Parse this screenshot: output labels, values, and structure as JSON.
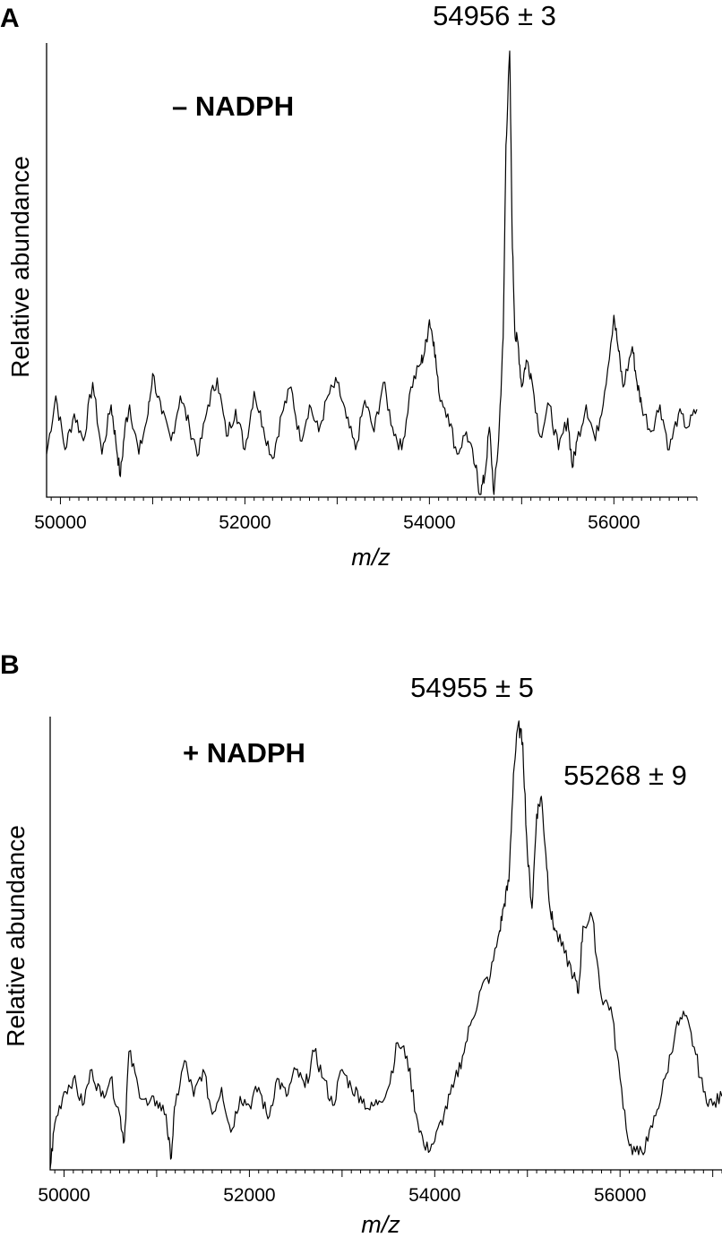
{
  "chart_data": [
    {
      "type": "line",
      "panel": "A",
      "annotation": "– NADPH",
      "peak_labels": [
        {
          "text": "54956 ± 3",
          "x": 54956
        }
      ],
      "ylabel": "Relative abundance",
      "xlabel": "m/z",
      "xlim": [
        49850,
        56900
      ],
      "ylim": [
        0,
        1
      ],
      "x_ticks": [
        50000,
        52000,
        54000,
        56000
      ],
      "x_tick_labels": [
        "50000",
        "52000",
        "54000",
        "56000"
      ],
      "series": [
        {
          "x": [
            49850,
            49950,
            50050,
            50150,
            50250,
            50350,
            50450,
            50550,
            50600,
            50650,
            50700,
            50750,
            50850,
            50950,
            51000,
            51100,
            51200,
            51300,
            51400,
            51500,
            51600,
            51700,
            51800,
            51900,
            52000,
            52100,
            52200,
            52300,
            52400,
            52500,
            52600,
            52700,
            52800,
            52900,
            53000,
            53100,
            53200,
            53300,
            53400,
            53500,
            53600,
            53700,
            53800,
            53900,
            53950,
            54000,
            54050,
            54100,
            54200,
            54300,
            54400,
            54500,
            54550,
            54600,
            54650,
            54700,
            54750,
            54800,
            54830,
            54870,
            54900,
            54930,
            54960,
            55000,
            55050,
            55100,
            55200,
            55300,
            55400,
            55500,
            55550,
            55600,
            55700,
            55800,
            55900,
            56000,
            56050,
            56100,
            56200,
            56250,
            56300,
            56400,
            56500,
            56600,
            56700,
            56800,
            56900
          ],
          "values": [
            0.09,
            0.22,
            0.1,
            0.18,
            0.12,
            0.25,
            0.09,
            0.2,
            0.12,
            0.04,
            0.15,
            0.2,
            0.09,
            0.18,
            0.27,
            0.18,
            0.12,
            0.22,
            0.15,
            0.09,
            0.2,
            0.26,
            0.13,
            0.19,
            0.1,
            0.23,
            0.15,
            0.08,
            0.18,
            0.24,
            0.12,
            0.2,
            0.14,
            0.22,
            0.25,
            0.17,
            0.1,
            0.21,
            0.14,
            0.25,
            0.15,
            0.1,
            0.24,
            0.29,
            0.32,
            0.39,
            0.34,
            0.23,
            0.18,
            0.09,
            0.14,
            0.06,
            0.0,
            0.04,
            0.15,
            0.0,
            0.12,
            0.35,
            0.78,
            0.99,
            0.55,
            0.35,
            0.34,
            0.24,
            0.3,
            0.27,
            0.13,
            0.2,
            0.1,
            0.17,
            0.06,
            0.12,
            0.2,
            0.12,
            0.23,
            0.4,
            0.32,
            0.24,
            0.33,
            0.25,
            0.2,
            0.14,
            0.2,
            0.1,
            0.18,
            0.15,
            0.19
          ]
        }
      ]
    },
    {
      "type": "line",
      "panel": "B",
      "annotation": "+ NADPH",
      "peak_labels": [
        {
          "text": "54955 ± 5",
          "x": 54955
        },
        {
          "text": "55268 ± 9",
          "x": 55268
        }
      ],
      "ylabel": "Relative abundance",
      "xlabel": "m/z",
      "xlim": [
        49850,
        57100
      ],
      "ylim": [
        0,
        1
      ],
      "x_ticks": [
        50000,
        52000,
        54000,
        56000
      ],
      "x_tick_labels": [
        "50000",
        "52000",
        "54000",
        "56000"
      ],
      "series": [
        {
          "x": [
            49850,
            49900,
            50000,
            50100,
            50200,
            50300,
            50400,
            50500,
            50600,
            50650,
            50700,
            50800,
            50900,
            51000,
            51100,
            51150,
            51200,
            51300,
            51400,
            51500,
            51600,
            51700,
            51800,
            51900,
            52000,
            52100,
            52200,
            52300,
            52400,
            52500,
            52600,
            52700,
            52800,
            52900,
            53000,
            53100,
            53200,
            53300,
            53400,
            53500,
            53600,
            53700,
            53800,
            53900,
            54000,
            54100,
            54200,
            54300,
            54400,
            54500,
            54600,
            54700,
            54750,
            54800,
            54850,
            54900,
            54950,
            55000,
            55050,
            55100,
            55150,
            55200,
            55250,
            55300,
            55400,
            55500,
            55550,
            55600,
            55700,
            55800,
            55900,
            56000,
            56100,
            56200,
            56300,
            56400,
            56500,
            56600,
            56700,
            56800,
            56900,
            57000,
            57100
          ],
          "values": [
            0.0,
            0.1,
            0.17,
            0.2,
            0.14,
            0.22,
            0.16,
            0.2,
            0.12,
            0.06,
            0.26,
            0.18,
            0.14,
            0.15,
            0.12,
            0.02,
            0.14,
            0.24,
            0.16,
            0.22,
            0.12,
            0.18,
            0.08,
            0.16,
            0.14,
            0.18,
            0.11,
            0.2,
            0.16,
            0.22,
            0.18,
            0.26,
            0.2,
            0.14,
            0.22,
            0.18,
            0.16,
            0.13,
            0.15,
            0.18,
            0.28,
            0.25,
            0.12,
            0.04,
            0.06,
            0.12,
            0.18,
            0.25,
            0.33,
            0.4,
            0.43,
            0.53,
            0.59,
            0.64,
            0.88,
            0.99,
            0.95,
            0.7,
            0.58,
            0.79,
            0.83,
            0.7,
            0.57,
            0.53,
            0.48,
            0.43,
            0.39,
            0.54,
            0.56,
            0.38,
            0.36,
            0.2,
            0.05,
            0.03,
            0.06,
            0.13,
            0.21,
            0.31,
            0.34,
            0.27,
            0.17,
            0.14,
            0.16
          ]
        }
      ]
    }
  ]
}
